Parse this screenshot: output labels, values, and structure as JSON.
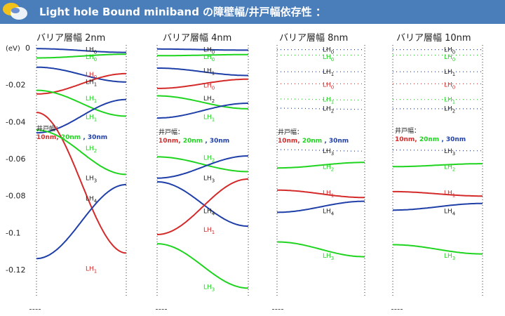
{
  "header": {
    "title": "Light hole Bound miniband の障壁幅/井戸幅依存性 ：",
    "background": "#4a7ebb"
  },
  "colors": {
    "blue": "#1f3fa8",
    "green": "#1ed41e",
    "red": "#d42a2a"
  },
  "chart_data": {
    "type": "line",
    "ylabel": "(eV)",
    "ylim": [
      -0.13,
      0.0
    ],
    "yticks": [
      0,
      -0.02,
      -0.04,
      -0.06,
      -0.08,
      -0.1,
      -0.12
    ],
    "ytick_labels": [
      "0",
      "-0.02",
      "-0.04",
      "-0.06",
      "-0.08",
      "-0.1",
      "-0.12"
    ],
    "legend_text": "井戸幅：",
    "legend_items": [
      {
        "label": "10nm,",
        "color": "red"
      },
      {
        "label": "20nm",
        "color": "green"
      },
      {
        "label": ", 30nm",
        "color": "blue"
      }
    ],
    "panels": [
      {
        "title": "バリア層幅  2nm",
        "style": "solid",
        "bands": [
          {
            "color": "blue",
            "center": -0.0015,
            "amp": 0.001,
            "phase": 1
          },
          {
            "color": "green",
            "center": -0.0045,
            "amp": 0.001,
            "phase": -1
          },
          {
            "color": "blue",
            "center": -0.0145,
            "amp": 0.004,
            "phase": 1
          },
          {
            "color": "red",
            "center": -0.0195,
            "amp": 0.0055,
            "phase": -1
          },
          {
            "color": "green",
            "center": -0.03,
            "amp": 0.007,
            "phase": 1
          },
          {
            "color": "blue",
            "center": -0.037,
            "amp": 0.009,
            "phase": -1
          },
          {
            "color": "red",
            "center": -0.073,
            "amp": 0.038,
            "phase": 1
          },
          {
            "color": "green",
            "center": -0.0565,
            "amp": 0.012,
            "phase": 1
          },
          {
            "color": "blue",
            "center": -0.094,
            "amp": 0.02,
            "phase": -1
          }
        ],
        "labels": [
          {
            "text": "LH0",
            "y": -0.0005,
            "color": "black"
          },
          {
            "text": "LH0",
            "y": -0.0045,
            "color": "green"
          },
          {
            "text": "LH0",
            "y": -0.014,
            "color": "red"
          },
          {
            "text": "LH1",
            "y": -0.018,
            "color": "black"
          },
          {
            "text": "LH1",
            "y": -0.027,
            "color": "green"
          },
          {
            "text": "LH1",
            "y": -0.037,
            "color": "green"
          },
          {
            "text": "LH2",
            "y": -0.054,
            "color": "green"
          },
          {
            "text": "LH3",
            "y": -0.07,
            "color": "black"
          },
          {
            "text": "LH4",
            "y": -0.081,
            "color": "black"
          },
          {
            "text": "LH1",
            "y": -0.119,
            "color": "red"
          }
        ]
      },
      {
        "title": "バリア層幅   4nm",
        "style": "solid",
        "bands": [
          {
            "color": "blue",
            "center": -0.001,
            "amp": 0.0003,
            "phase": 1
          },
          {
            "color": "green",
            "center": -0.004,
            "amp": 0.0003,
            "phase": -1
          },
          {
            "color": "blue",
            "center": -0.013,
            "amp": 0.002,
            "phase": 1
          },
          {
            "color": "red",
            "center": -0.0195,
            "amp": 0.0025,
            "phase": -1
          },
          {
            "color": "green",
            "center": -0.0295,
            "amp": 0.0035,
            "phase": 1
          },
          {
            "color": "blue",
            "center": -0.034,
            "amp": 0.004,
            "phase": -1
          },
          {
            "color": "green",
            "center": -0.063,
            "amp": 0.004,
            "phase": 1
          },
          {
            "color": "blue",
            "center": -0.0645,
            "amp": 0.006,
            "phase": -1
          },
          {
            "color": "blue",
            "center": -0.0845,
            "amp": 0.012,
            "phase": 1
          },
          {
            "color": "red",
            "center": -0.086,
            "amp": 0.015,
            "phase": -1
          },
          {
            "color": "green",
            "center": -0.118,
            "amp": 0.012,
            "phase": 1
          }
        ],
        "labels": [
          {
            "text": "LH0",
            "y": -0.0005,
            "color": "black"
          },
          {
            "text": "LH0",
            "y": -0.0045,
            "color": "green"
          },
          {
            "text": "LH1",
            "y": -0.012,
            "color": "black"
          },
          {
            "text": "LH0",
            "y": -0.02,
            "color": "red"
          },
          {
            "text": "LH2",
            "y": -0.027,
            "color": "black"
          },
          {
            "text": "LH1",
            "y": -0.037,
            "color": "green"
          },
          {
            "text": "LH2",
            "y": -0.059,
            "color": "green"
          },
          {
            "text": "LH3",
            "y": -0.07,
            "color": "black"
          },
          {
            "text": "LH4",
            "y": -0.088,
            "color": "black"
          },
          {
            "text": "LH1",
            "y": -0.098,
            "color": "red"
          },
          {
            "text": "LH3",
            "y": -0.129,
            "color": "green"
          }
        ]
      },
      {
        "title": "バリア層幅  8nm",
        "style": "dotted_top",
        "bands": [
          {
            "color": "blue",
            "center": -0.001,
            "amp": 0.0,
            "phase": 1
          },
          {
            "color": "green",
            "center": -0.004,
            "amp": 0.0,
            "phase": 1
          },
          {
            "color": "blue",
            "center": -0.013,
            "amp": 0.0,
            "phase": 1
          },
          {
            "color": "red",
            "center": -0.0195,
            "amp": 0.0,
            "phase": 1
          },
          {
            "color": "green",
            "center": -0.028,
            "amp": 0.0003,
            "phase": 1
          },
          {
            "color": "blue",
            "center": -0.033,
            "amp": 0.0003,
            "phase": 1
          },
          {
            "color": "blue",
            "center": -0.0555,
            "amp": 0.0004,
            "phase": 1
          },
          {
            "color": "green",
            "center": -0.0635,
            "amp": 0.0015,
            "phase": -1
          },
          {
            "color": "red",
            "center": -0.079,
            "amp": 0.002,
            "phase": 1
          },
          {
            "color": "blue",
            "center": -0.086,
            "amp": 0.003,
            "phase": -1
          },
          {
            "color": "green",
            "center": -0.109,
            "amp": 0.004,
            "phase": 1
          }
        ],
        "labels": [
          {
            "text": "LH0",
            "y": -0.0005,
            "color": "black"
          },
          {
            "text": "LH0",
            "y": -0.0045,
            "color": "green"
          },
          {
            "text": "LH1",
            "y": -0.0125,
            "color": "black"
          },
          {
            "text": "LH0",
            "y": -0.0195,
            "color": "red"
          },
          {
            "text": "LH1",
            "y": -0.0275,
            "color": "green"
          },
          {
            "text": "LH2",
            "y": -0.0325,
            "color": "black"
          },
          {
            "text": "LH3",
            "y": -0.0555,
            "color": "black"
          },
          {
            "text": "LH2",
            "y": -0.064,
            "color": "green"
          },
          {
            "text": "LH1",
            "y": -0.078,
            "color": "red"
          },
          {
            "text": "LH4",
            "y": -0.088,
            "color": "black"
          },
          {
            "text": "LH3",
            "y": -0.112,
            "color": "green"
          }
        ]
      },
      {
        "title": "バリア層幅  10nm",
        "style": "dotted_top",
        "bands": [
          {
            "color": "blue",
            "center": -0.001,
            "amp": 0.0,
            "phase": 1
          },
          {
            "color": "green",
            "center": -0.004,
            "amp": 0.0,
            "phase": 1
          },
          {
            "color": "blue",
            "center": -0.013,
            "amp": 0.0,
            "phase": 1
          },
          {
            "color": "red",
            "center": -0.0195,
            "amp": 0.0,
            "phase": 1
          },
          {
            "color": "green",
            "center": -0.028,
            "amp": 0.0,
            "phase": 1
          },
          {
            "color": "blue",
            "center": -0.033,
            "amp": 0.0,
            "phase": 1
          },
          {
            "color": "blue",
            "center": -0.0555,
            "amp": 0.0002,
            "phase": 1
          },
          {
            "color": "green",
            "center": -0.0635,
            "amp": 0.0008,
            "phase": -1
          },
          {
            "color": "red",
            "center": -0.079,
            "amp": 0.0012,
            "phase": 1
          },
          {
            "color": "blue",
            "center": -0.086,
            "amp": 0.0018,
            "phase": -1
          },
          {
            "color": "green",
            "center": -0.109,
            "amp": 0.0025,
            "phase": 1
          }
        ],
        "labels": [
          {
            "text": "LH0",
            "y": -0.0005,
            "color": "black"
          },
          {
            "text": "LH0",
            "y": -0.0045,
            "color": "green"
          },
          {
            "text": "LH1",
            "y": -0.0125,
            "color": "black"
          },
          {
            "text": "LH0",
            "y": -0.0195,
            "color": "red"
          },
          {
            "text": "LH1",
            "y": -0.0275,
            "color": "green"
          },
          {
            "text": "LH2",
            "y": -0.0325,
            "color": "black"
          },
          {
            "text": "LH3",
            "y": -0.0555,
            "color": "black"
          },
          {
            "text": "LH2",
            "y": -0.064,
            "color": "green"
          },
          {
            "text": "LH1",
            "y": -0.078,
            "color": "red"
          },
          {
            "text": "LH4",
            "y": -0.088,
            "color": "black"
          },
          {
            "text": "LH3",
            "y": -0.112,
            "color": "green"
          }
        ]
      }
    ]
  }
}
